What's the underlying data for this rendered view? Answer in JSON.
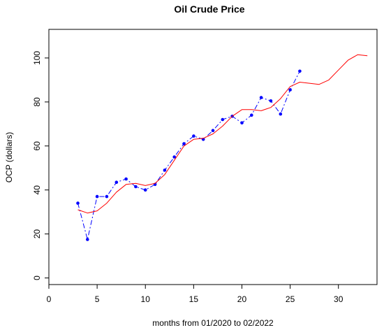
{
  "chart_data": {
    "type": "line",
    "title": "Oil Crude Price",
    "xlabel": "months from 01/2020 to 02/2022",
    "ylabel": "OCP (dollars)",
    "xlim": [
      0,
      34
    ],
    "ylim": [
      -3,
      113
    ],
    "x_ticks": [
      0,
      5,
      10,
      15,
      20,
      25,
      30
    ],
    "y_ticks": [
      0,
      20,
      40,
      60,
      80,
      100
    ],
    "grid": false,
    "series": [
      {
        "style": "points-dashed",
        "color": "#0000ff",
        "x": [
          3,
          4,
          5,
          6,
          7,
          8,
          9,
          10,
          11,
          12,
          13,
          14,
          15,
          16,
          17,
          18,
          19,
          20,
          21,
          22,
          23,
          24,
          25,
          26
        ],
        "y": [
          34,
          17.5,
          37,
          37,
          43.5,
          45,
          41.5,
          40,
          42.5,
          49,
          55,
          61,
          64.5,
          63,
          67,
          72,
          73.5,
          70.5,
          74,
          82,
          80.5,
          74.5,
          85.5,
          94
        ]
      },
      {
        "style": "smooth-line",
        "color": "#ff0000",
        "x": [
          3,
          4,
          5,
          6,
          7,
          8,
          9,
          10,
          11,
          12,
          13,
          14,
          15,
          16,
          17,
          18,
          19,
          20,
          21,
          22,
          23,
          24,
          25,
          26,
          27,
          28,
          29,
          30,
          31,
          32,
          33
        ],
        "y": [
          31,
          29.5,
          30.5,
          34,
          39,
          42.5,
          43,
          42,
          43,
          47,
          53.5,
          60,
          63,
          63.5,
          65.5,
          69,
          73.5,
          76.5,
          76.5,
          76,
          77.5,
          81.5,
          87,
          89,
          88.5,
          88,
          90,
          94.5,
          99,
          101.5,
          101
        ]
      }
    ]
  }
}
